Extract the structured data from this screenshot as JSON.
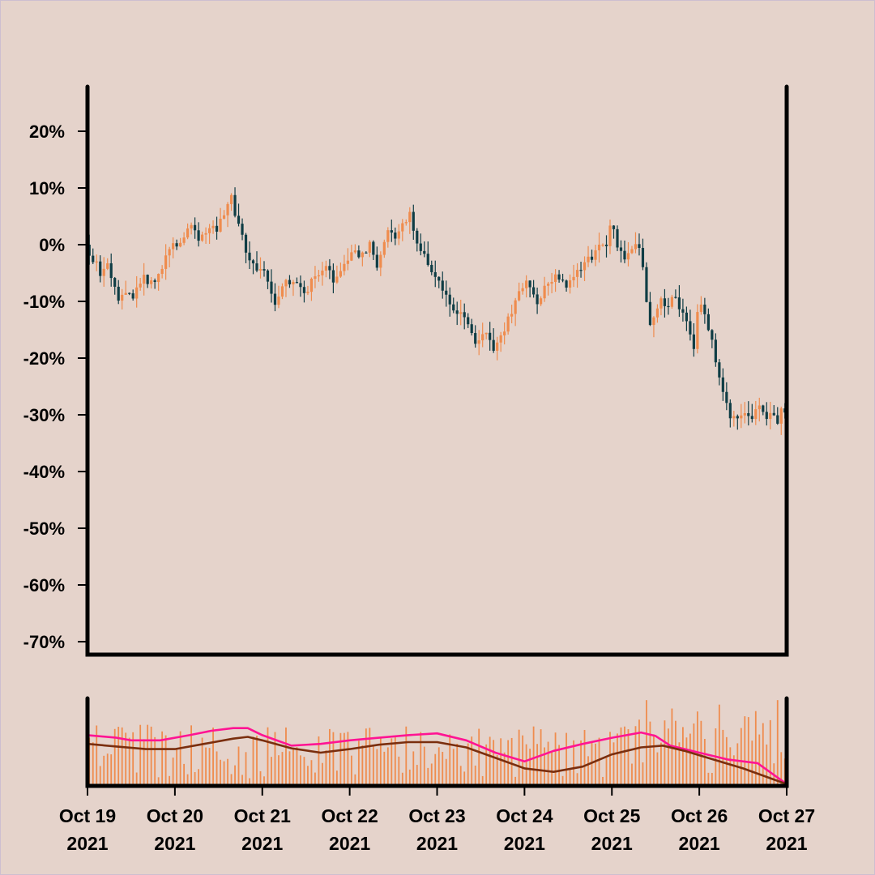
{
  "chart_data": {
    "type": "candlestick",
    "title": "",
    "xlabel": "",
    "ylabel": "",
    "ylim": [
      -72,
      28
    ],
    "y_ticks": [
      20,
      10,
      0,
      -10,
      -20,
      -30,
      -40,
      -50,
      -60,
      -70
    ],
    "y_tick_labels": [
      "20%",
      "10%",
      "0%",
      "-10%",
      "-20%",
      "-30%",
      "-40%",
      "-50%",
      "-60%",
      "-70%"
    ],
    "x_range": [
      0,
      192
    ],
    "x_ticks": [
      0,
      24,
      48,
      72,
      96,
      120,
      144,
      168,
      192
    ],
    "x_tick_labels": [
      [
        "Oct 19",
        "2021"
      ],
      [
        "Oct 20",
        "2021"
      ],
      [
        "Oct 21",
        "2021"
      ],
      [
        "Oct 22",
        "2021"
      ],
      [
        "Oct 23",
        "2021"
      ],
      [
        "Oct 24",
        "2021"
      ],
      [
        "Oct 25",
        "2021"
      ],
      [
        "Oct 26",
        "2021"
      ],
      [
        "Oct 27",
        "2021"
      ]
    ],
    "x_unit": "hours since Oct 19 2021 00:00",
    "close_path": [
      [
        0,
        0
      ],
      [
        4,
        -5
      ],
      [
        6,
        -4
      ],
      [
        9,
        -10
      ],
      [
        11,
        -8
      ],
      [
        13,
        -10
      ],
      [
        14,
        -8
      ],
      [
        16,
        -6
      ],
      [
        18,
        -7
      ],
      [
        21,
        -4
      ],
      [
        23,
        0
      ],
      [
        26,
        0
      ],
      [
        29,
        4
      ],
      [
        31,
        1
      ],
      [
        34,
        3
      ],
      [
        36,
        3
      ],
      [
        39,
        7
      ],
      [
        40,
        8
      ],
      [
        43,
        1
      ],
      [
        46,
        -4
      ],
      [
        49,
        -5
      ],
      [
        52,
        -10
      ],
      [
        55,
        -7
      ],
      [
        57,
        -6
      ],
      [
        60,
        -9
      ],
      [
        63,
        -5
      ],
      [
        66,
        -4
      ],
      [
        68,
        -6
      ],
      [
        71,
        -4
      ],
      [
        73,
        -1
      ],
      [
        75,
        -2
      ],
      [
        78,
        0
      ],
      [
        80,
        -4
      ],
      [
        83,
        3
      ],
      [
        85,
        1
      ],
      [
        88,
        4
      ],
      [
        89,
        5
      ],
      [
        91,
        1
      ],
      [
        94,
        -4
      ],
      [
        96,
        -5
      ],
      [
        99,
        -9
      ],
      [
        102,
        -12
      ],
      [
        105,
        -14
      ],
      [
        107,
        -17
      ],
      [
        110,
        -16
      ],
      [
        112,
        -19
      ],
      [
        114,
        -16
      ],
      [
        117,
        -12
      ],
      [
        119,
        -8
      ],
      [
        121,
        -6
      ],
      [
        124,
        -10
      ],
      [
        126,
        -8
      ],
      [
        129,
        -6
      ],
      [
        132,
        -7
      ],
      [
        134,
        -5
      ],
      [
        136,
        -4
      ],
      [
        139,
        -2
      ],
      [
        141,
        0
      ],
      [
        143,
        0
      ],
      [
        144,
        4
      ],
      [
        146,
        0
      ],
      [
        148,
        -2
      ],
      [
        150,
        0
      ],
      [
        152,
        0
      ],
      [
        155,
        -14
      ],
      [
        158,
        -10
      ],
      [
        160,
        -11
      ],
      [
        162,
        -9
      ],
      [
        165,
        -14
      ],
      [
        167,
        -18
      ],
      [
        168,
        -12
      ],
      [
        169,
        -10
      ],
      [
        171,
        -15
      ],
      [
        173,
        -20
      ],
      [
        174,
        -24
      ],
      [
        176,
        -28
      ],
      [
        177,
        -31
      ],
      [
        179,
        -30
      ],
      [
        181,
        -29
      ],
      [
        183,
        -30
      ],
      [
        185,
        -28
      ],
      [
        187,
        -30
      ],
      [
        190,
        -31
      ],
      [
        191.5,
        -29
      ]
    ],
    "volume_ma_fast": [
      [
        0,
        0.58
      ],
      [
        8,
        0.55
      ],
      [
        12,
        0.52
      ],
      [
        20,
        0.52
      ],
      [
        28,
        0.58
      ],
      [
        34,
        0.63
      ],
      [
        40,
        0.66
      ],
      [
        44,
        0.66
      ],
      [
        48,
        0.58
      ],
      [
        56,
        0.46
      ],
      [
        64,
        0.48
      ],
      [
        72,
        0.52
      ],
      [
        80,
        0.55
      ],
      [
        88,
        0.58
      ],
      [
        96,
        0.6
      ],
      [
        104,
        0.52
      ],
      [
        112,
        0.38
      ],
      [
        120,
        0.28
      ],
      [
        128,
        0.4
      ],
      [
        136,
        0.48
      ],
      [
        144,
        0.55
      ],
      [
        152,
        0.61
      ],
      [
        156,
        0.57
      ],
      [
        160,
        0.46
      ],
      [
        168,
        0.38
      ],
      [
        176,
        0.3
      ],
      [
        184,
        0.26
      ],
      [
        192,
        0.02
      ]
    ],
    "volume_ma_slow": [
      [
        0,
        0.48
      ],
      [
        8,
        0.45
      ],
      [
        16,
        0.42
      ],
      [
        24,
        0.42
      ],
      [
        32,
        0.48
      ],
      [
        40,
        0.54
      ],
      [
        44,
        0.56
      ],
      [
        48,
        0.52
      ],
      [
        56,
        0.43
      ],
      [
        64,
        0.38
      ],
      [
        72,
        0.42
      ],
      [
        80,
        0.47
      ],
      [
        88,
        0.5
      ],
      [
        96,
        0.5
      ],
      [
        104,
        0.44
      ],
      [
        112,
        0.32
      ],
      [
        120,
        0.2
      ],
      [
        128,
        0.16
      ],
      [
        136,
        0.22
      ],
      [
        144,
        0.36
      ],
      [
        152,
        0.44
      ],
      [
        158,
        0.46
      ],
      [
        164,
        0.4
      ],
      [
        172,
        0.3
      ],
      [
        180,
        0.2
      ],
      [
        188,
        0.08
      ],
      [
        192,
        0.02
      ]
    ],
    "colors": {
      "up": "#ef8c4e",
      "down": "#0f3d45",
      "volume": "#ef8c4e",
      "ma_fast": "#ff1493",
      "ma_slow": "#7a2e0e",
      "axis": "#000000",
      "background": "#e5d3cb"
    }
  }
}
